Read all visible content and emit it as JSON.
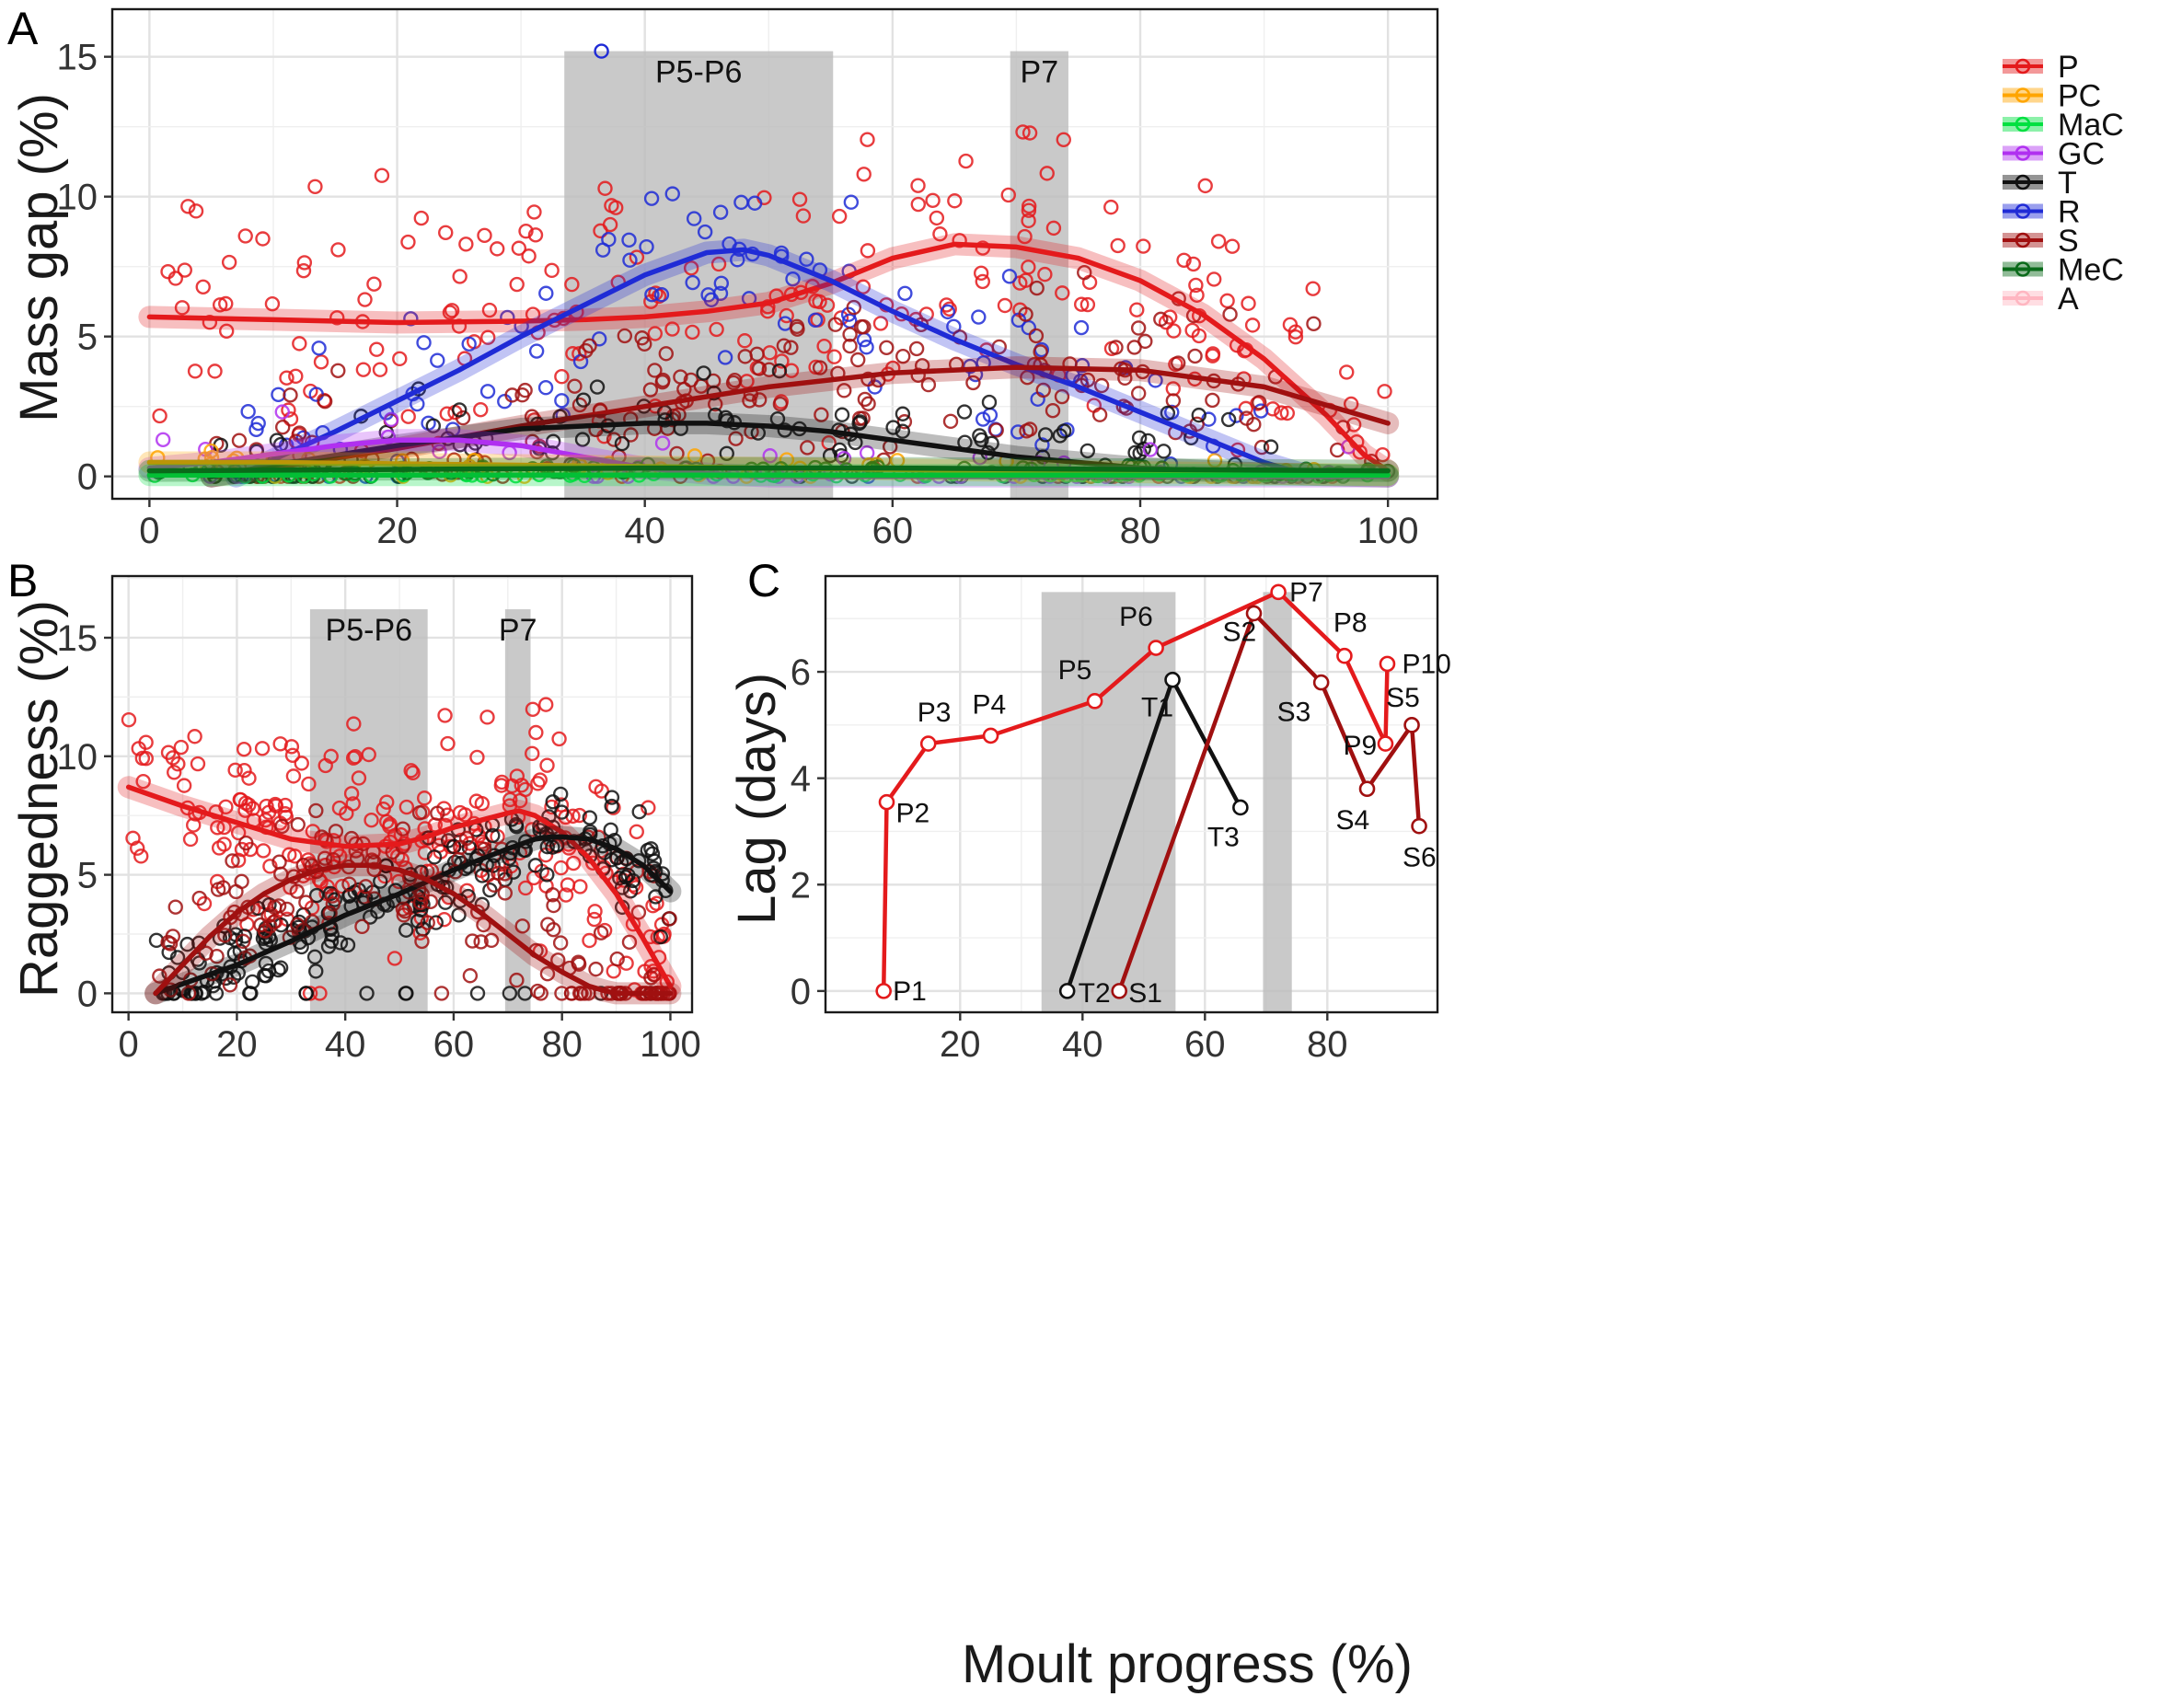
{
  "figure": {
    "xlabel_shared": "Moult progress (%)"
  },
  "colors": {
    "P": "#e41a1c",
    "PC": "#ffa500",
    "MaC": "#00e040",
    "GC": "#b030f0",
    "T": "#111111",
    "R": "#1f2bd6",
    "S": "#a01010",
    "MeC": "#0a6a1a",
    "A": "#ffb6c1"
  },
  "chart_data": [
    {
      "panel": "A",
      "type": "scatter",
      "ylabel": "Mass gap (%)",
      "xlim": [
        -3,
        104
      ],
      "ylim": [
        -0.8,
        16.7
      ],
      "xticks": [
        0,
        20,
        40,
        60,
        80,
        100
      ],
      "yticks": [
        0,
        5,
        10,
        15
      ],
      "grid": true,
      "legend": {
        "placement": "top-right",
        "entries": [
          "P",
          "PC",
          "MaC",
          "GC",
          "T",
          "R",
          "S",
          "MeC",
          "A"
        ]
      },
      "shaded_regions": [
        {
          "label": "P5-P6",
          "x0": 33.5,
          "x1": 55.2,
          "y_top": 15.2
        },
        {
          "label": "P7",
          "x0": 69.5,
          "x1": 74.2,
          "y_top": 15.2
        }
      ],
      "smooth_lines": [
        {
          "name": "P",
          "x": [
            0,
            10,
            20,
            30,
            35,
            40,
            45,
            50,
            55,
            60,
            65,
            70,
            75,
            80,
            85,
            90,
            95,
            98,
            100
          ],
          "y": [
            5.7,
            5.6,
            5.5,
            5.55,
            5.6,
            5.7,
            5.9,
            6.2,
            6.9,
            7.8,
            8.3,
            8.2,
            7.8,
            7.0,
            5.8,
            4.2,
            2.2,
            0.8,
            0.2
          ]
        },
        {
          "name": "R",
          "x": [
            7,
            10,
            15,
            20,
            25,
            30,
            35,
            40,
            45,
            48,
            50,
            55,
            60,
            65,
            70,
            75,
            80,
            85,
            90,
            93
          ],
          "y": [
            0,
            0.6,
            1.6,
            2.7,
            3.8,
            5.0,
            6.1,
            7.2,
            8.0,
            8.1,
            7.9,
            7.0,
            5.9,
            4.9,
            4.0,
            3.2,
            2.3,
            1.4,
            0.5,
            0.1
          ]
        },
        {
          "name": "S",
          "x": [
            5,
            10,
            20,
            30,
            40,
            50,
            60,
            70,
            80,
            90,
            100
          ],
          "y": [
            0,
            0.3,
            1.0,
            1.8,
            2.5,
            3.2,
            3.7,
            3.9,
            3.8,
            3.2,
            1.9
          ]
        },
        {
          "name": "T",
          "x": [
            5,
            10,
            20,
            30,
            40,
            45,
            50,
            55,
            60,
            65,
            70,
            75,
            80,
            85,
            90,
            95,
            100
          ],
          "y": [
            0,
            0.4,
            1.1,
            1.7,
            1.9,
            1.9,
            1.8,
            1.6,
            1.3,
            1.0,
            0.7,
            0.5,
            0.3,
            0.2,
            0.1,
            0.05,
            0
          ]
        },
        {
          "name": "GC",
          "x": [
            0,
            5,
            10,
            15,
            20,
            25,
            30,
            35,
            40,
            45,
            50,
            60,
            70,
            80,
            90,
            100
          ],
          "y": [
            0.3,
            0.5,
            0.8,
            1.1,
            1.3,
            1.3,
            1.1,
            0.7,
            0.3,
            0.1,
            0,
            0,
            0,
            0,
            0,
            0
          ]
        },
        {
          "name": "PC",
          "x": [
            0,
            10,
            20,
            30,
            40,
            50,
            60,
            70,
            80,
            90,
            100
          ],
          "y": [
            0.5,
            0.5,
            0.45,
            0.4,
            0.35,
            0.3,
            0.25,
            0.2,
            0.15,
            0.1,
            0.05
          ]
        },
        {
          "name": "MaC",
          "x": [
            0,
            20,
            40,
            60,
            80,
            100
          ],
          "y": [
            0.05,
            0.05,
            0.05,
            0.05,
            0.05,
            0.05
          ]
        },
        {
          "name": "MeC",
          "x": [
            0,
            20,
            40,
            60,
            80,
            100
          ],
          "y": [
            0.2,
            0.25,
            0.3,
            0.3,
            0.25,
            0.2
          ]
        }
      ],
      "points": [
        {
          "series": "R",
          "x": 36.5,
          "y": 15.2
        }
      ]
    },
    {
      "panel": "B",
      "type": "scatter",
      "ylabel": "Raggedness (%)",
      "xlim": [
        -3,
        104
      ],
      "ylim": [
        -0.8,
        17.6
      ],
      "xticks": [
        0,
        20,
        40,
        60,
        80,
        100
      ],
      "yticks": [
        0,
        5,
        10,
        15
      ],
      "grid": true,
      "shaded_regions": [
        {
          "label": "P5-P6",
          "x0": 33.5,
          "x1": 55.2,
          "y_top": 16.2
        },
        {
          "label": "P7",
          "x0": 69.5,
          "x1": 74.2,
          "y_top": 16.2
        }
      ],
      "smooth_lines": [
        {
          "name": "P",
          "x": [
            0,
            5,
            10,
            20,
            30,
            40,
            50,
            55,
            60,
            65,
            70,
            72,
            75,
            80,
            85,
            90,
            95,
            100
          ],
          "y": [
            8.7,
            8.3,
            7.9,
            7.2,
            6.5,
            6.2,
            6.3,
            6.6,
            7.0,
            7.3,
            7.6,
            7.7,
            7.5,
            6.8,
            5.7,
            4.2,
            2.3,
            0.3
          ]
        },
        {
          "name": "T",
          "x": [
            5,
            10,
            20,
            30,
            40,
            50,
            60,
            70,
            75,
            78,
            80,
            85,
            90,
            95,
            100
          ],
          "y": [
            0,
            0.4,
            1.2,
            2.2,
            3.3,
            4.2,
            5.2,
            6.1,
            6.5,
            6.6,
            6.6,
            6.5,
            6.1,
            5.4,
            4.3
          ]
        },
        {
          "name": "S",
          "x": [
            5,
            10,
            15,
            20,
            25,
            30,
            35,
            40,
            45,
            50,
            55,
            60,
            65,
            70,
            75,
            80,
            85,
            88,
            90,
            100
          ],
          "y": [
            0,
            1.2,
            2.4,
            3.4,
            4.2,
            4.8,
            5.2,
            5.4,
            5.4,
            5.2,
            4.8,
            4.2,
            3.4,
            2.5,
            1.6,
            0.9,
            0.3,
            0.1,
            0,
            0
          ]
        }
      ]
    },
    {
      "panel": "C",
      "type": "line",
      "ylabel": "Lag (days)",
      "xlim": [
        -2,
        98
      ],
      "ylim": [
        -0.4,
        7.8
      ],
      "xticks": [
        20,
        40,
        60,
        80
      ],
      "yticks": [
        0,
        2,
        4,
        6
      ],
      "grid": true,
      "shaded_regions": [
        {
          "x0": 33.3,
          "x1": 55.2,
          "y_top": 7.5
        },
        {
          "x0": 69.5,
          "x1": 74.2,
          "y_top": 7.5
        }
      ],
      "series": [
        {
          "name": "P",
          "points": [
            {
              "label": "P1",
              "x": 7.5,
              "y": 0
            },
            {
              "label": "P2",
              "x": 8.0,
              "y": 3.55
            },
            {
              "label": "P3",
              "x": 14.8,
              "y": 4.65
            },
            {
              "label": "P4",
              "x": 25.0,
              "y": 4.8
            },
            {
              "label": "P5",
              "x": 42.0,
              "y": 5.45
            },
            {
              "label": "P6",
              "x": 52.0,
              "y": 6.45
            },
            {
              "label": "P7",
              "x": 72.0,
              "y": 7.5
            },
            {
              "label": "P8",
              "x": 82.8,
              "y": 6.3
            },
            {
              "label": "P9",
              "x": 89.5,
              "y": 4.65
            },
            {
              "label": "P10",
              "x": 89.8,
              "y": 6.15
            }
          ]
        },
        {
          "name": "T",
          "points": [
            {
              "label": "T2",
              "x": 37.5,
              "y": 0
            },
            {
              "label": "T1",
              "x": 54.7,
              "y": 5.85
            },
            {
              "label": "T3",
              "x": 65.8,
              "y": 3.45
            }
          ]
        },
        {
          "name": "S",
          "points": [
            {
              "label": "S1",
              "x": 46.0,
              "y": 0
            },
            {
              "label": "S2",
              "x": 68.0,
              "y": 7.1
            },
            {
              "label": "S3",
              "x": 79.0,
              "y": 5.8
            },
            {
              "label": "S4",
              "x": 86.5,
              "y": 3.8
            },
            {
              "label": "S5",
              "x": 93.8,
              "y": 5.0
            },
            {
              "label": "S6",
              "x": 95.0,
              "y": 3.1
            }
          ]
        }
      ]
    }
  ]
}
